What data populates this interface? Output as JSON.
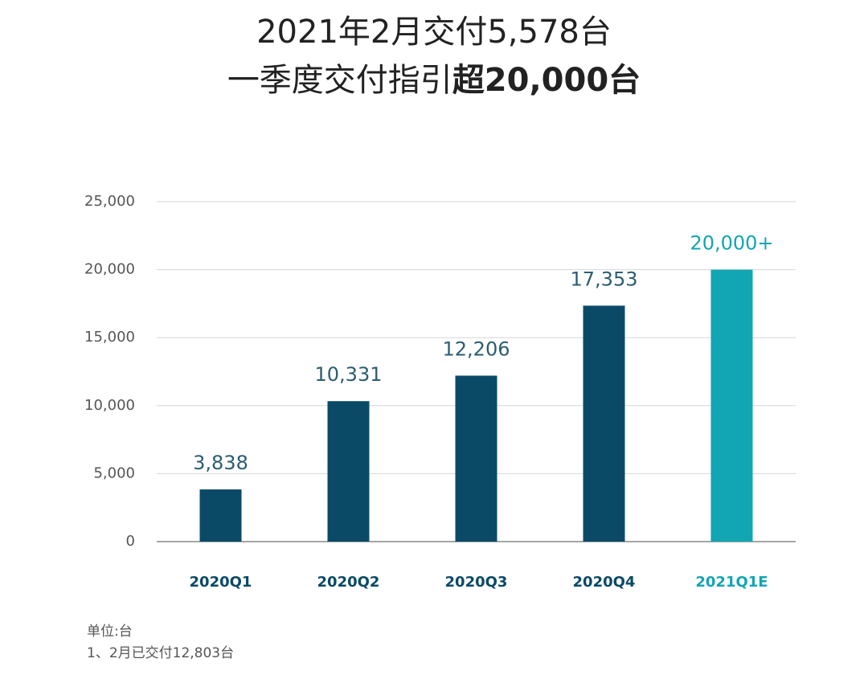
{
  "chart_data": {
    "type": "bar",
    "title": "2021年2月交付5,578台",
    "subtitle": {
      "text": "一季度交付指引",
      "emphasis": "超20,000台"
    },
    "categories": [
      "2020Q1",
      "2020Q2",
      "2020Q3",
      "2020Q4",
      "2021Q1E"
    ],
    "values": [
      3838,
      10331,
      12206,
      17353,
      20000
    ],
    "value_labels": [
      "3,838",
      "10,331",
      "12,206",
      "17,353",
      "20,000+"
    ],
    "colors": [
      "#0b4a66",
      "#0b4a66",
      "#0b4a66",
      "#0b4a66",
      "#12a5b3"
    ],
    "ylim": [
      0,
      25000
    ],
    "yticks": [
      0,
      {
        "value": 5000,
        "label": "5,000"
      },
      {
        "value": 10000,
        "label": "10,000"
      },
      {
        "value": 15000,
        "label": "15,000"
      },
      {
        "value": 20000,
        "label": "20,000"
      },
      {
        "value": 25000,
        "label": "25,000"
      }
    ],
    "grid": true,
    "notes": [
      "单位:台",
      "1、2月已交付12,803台"
    ]
  }
}
